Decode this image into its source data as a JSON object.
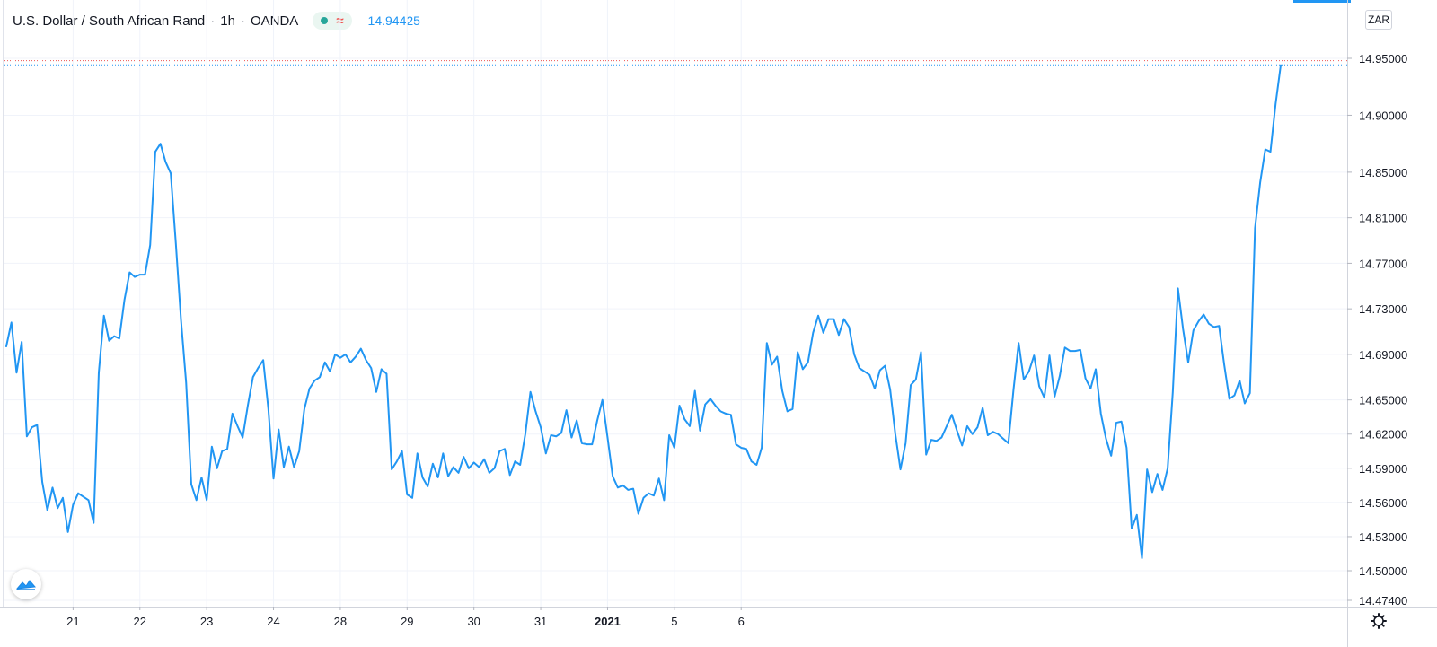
{
  "header": {
    "symbol": "U.S. Dollar / South African Rand",
    "interval": "1h",
    "source": "OANDA",
    "separator": "·",
    "last_value": "14.94425"
  },
  "currency_label": "ZAR",
  "icons": {
    "status_dot": "market-status-dot-icon",
    "wave": "chart-type-wave-icon",
    "logo": "tradingview-logo-icon",
    "gear": "settings-gear-icon"
  },
  "colors": {
    "line": "#2196f3",
    "grid": "#f0f3fa",
    "axis_text": "#131722",
    "red_ref": "#ef5350",
    "status": "#26a69a"
  },
  "chart_data": {
    "type": "line",
    "title": "U.S. Dollar / South African Rand · 1h · OANDA",
    "xlabel": "",
    "ylabel": "",
    "x_tick_labels": [
      "21",
      "22",
      "23",
      "24",
      "28",
      "29",
      "30",
      "31",
      "2021",
      "5",
      "6"
    ],
    "y_tick_labels": [
      "14.95000",
      "14.90000",
      "14.85000",
      "14.81000",
      "14.77000",
      "14.73000",
      "14.69000",
      "14.65000",
      "14.62000",
      "14.59000",
      "14.56000",
      "14.53000",
      "14.50000",
      "14.47400"
    ],
    "ylim": [
      14.47,
      14.955
    ],
    "grid": true,
    "reference_lines": [
      {
        "value": 14.9479,
        "color": "#ef5350"
      },
      {
        "value": 14.94425,
        "color": "#2196f3"
      }
    ],
    "series": [
      {
        "values": [
          14.697,
          14.718,
          14.674,
          14.701,
          14.618,
          14.626,
          14.628,
          14.578,
          14.553,
          14.573,
          14.555,
          14.564,
          14.534,
          14.558,
          14.568,
          14.565,
          14.562,
          14.542,
          14.674,
          14.724,
          14.702,
          14.706,
          14.704,
          14.738,
          14.762,
          14.758,
          14.76,
          14.76,
          14.786,
          14.868,
          14.875,
          14.859,
          14.849,
          14.787,
          14.72,
          14.665,
          14.576,
          14.562,
          14.582,
          14.562,
          14.609,
          14.59,
          14.605,
          14.607,
          14.638,
          14.627,
          14.617,
          14.645,
          14.67,
          14.678,
          14.685,
          14.642,
          14.581,
          14.624,
          14.591,
          14.609,
          14.591,
          14.605,
          14.642,
          14.66,
          14.667,
          14.67,
          14.683,
          14.675,
          14.69,
          14.687,
          14.69,
          14.683,
          14.688,
          14.695,
          14.685,
          14.678,
          14.657,
          14.677,
          14.673,
          14.589,
          14.596,
          14.605,
          14.567,
          14.564,
          14.603,
          14.582,
          14.574,
          14.594,
          14.582,
          14.603,
          14.583,
          14.591,
          14.586,
          14.6,
          14.59,
          14.595,
          14.591,
          14.598,
          14.586,
          14.59,
          14.605,
          14.607,
          14.584,
          14.596,
          14.593,
          14.62,
          14.657,
          14.64,
          14.626,
          14.603,
          14.619,
          14.618,
          14.621,
          14.641,
          14.617,
          14.632,
          14.612,
          14.611,
          14.611,
          14.632,
          14.65,
          14.617,
          14.583,
          14.573,
          14.575,
          14.571,
          14.572,
          14.55,
          14.564,
          14.568,
          14.566,
          14.581,
          14.562,
          14.619,
          14.608,
          14.645,
          14.633,
          14.627,
          14.658,
          14.623,
          14.646,
          14.651,
          14.645,
          14.64,
          14.638,
          14.637,
          14.611,
          14.608,
          14.607,
          14.596,
          14.593,
          14.608,
          14.7,
          14.681,
          14.688,
          14.658,
          14.64,
          14.642,
          14.692,
          14.677,
          14.683,
          14.709,
          14.724,
          14.709,
          14.721,
          14.721,
          14.707,
          14.721,
          14.714,
          14.69,
          14.678,
          14.675,
          14.672,
          14.66,
          14.676,
          14.68,
          14.659,
          14.62,
          14.589,
          14.612,
          14.663,
          14.668,
          14.692,
          14.602,
          14.615,
          14.614,
          14.617,
          14.627,
          14.637,
          14.623,
          14.61,
          14.627,
          14.62,
          14.626,
          14.643,
          14.619,
          14.622,
          14.62,
          14.616,
          14.612,
          14.659,
          14.7,
          14.668,
          14.675,
          14.689,
          14.662,
          14.652,
          14.689,
          14.653,
          14.671,
          14.696,
          14.693,
          14.693,
          14.694,
          14.669,
          14.66,
          14.677,
          14.638,
          14.616,
          14.601,
          14.63,
          14.631,
          14.608,
          14.537,
          14.549,
          14.511,
          14.589,
          14.569,
          14.585,
          14.571,
          14.59,
          14.657,
          14.748,
          14.712,
          14.683,
          14.711,
          14.719,
          14.725,
          14.717,
          14.714,
          14.715,
          14.681,
          14.651,
          14.654,
          14.667,
          14.647,
          14.656,
          14.801,
          14.841,
          14.87,
          14.868,
          14.91,
          14.944
        ]
      }
    ],
    "x_ticks_index": [
      13,
      26,
      39,
      52,
      65,
      78,
      91,
      104,
      117,
      130,
      143
    ]
  }
}
